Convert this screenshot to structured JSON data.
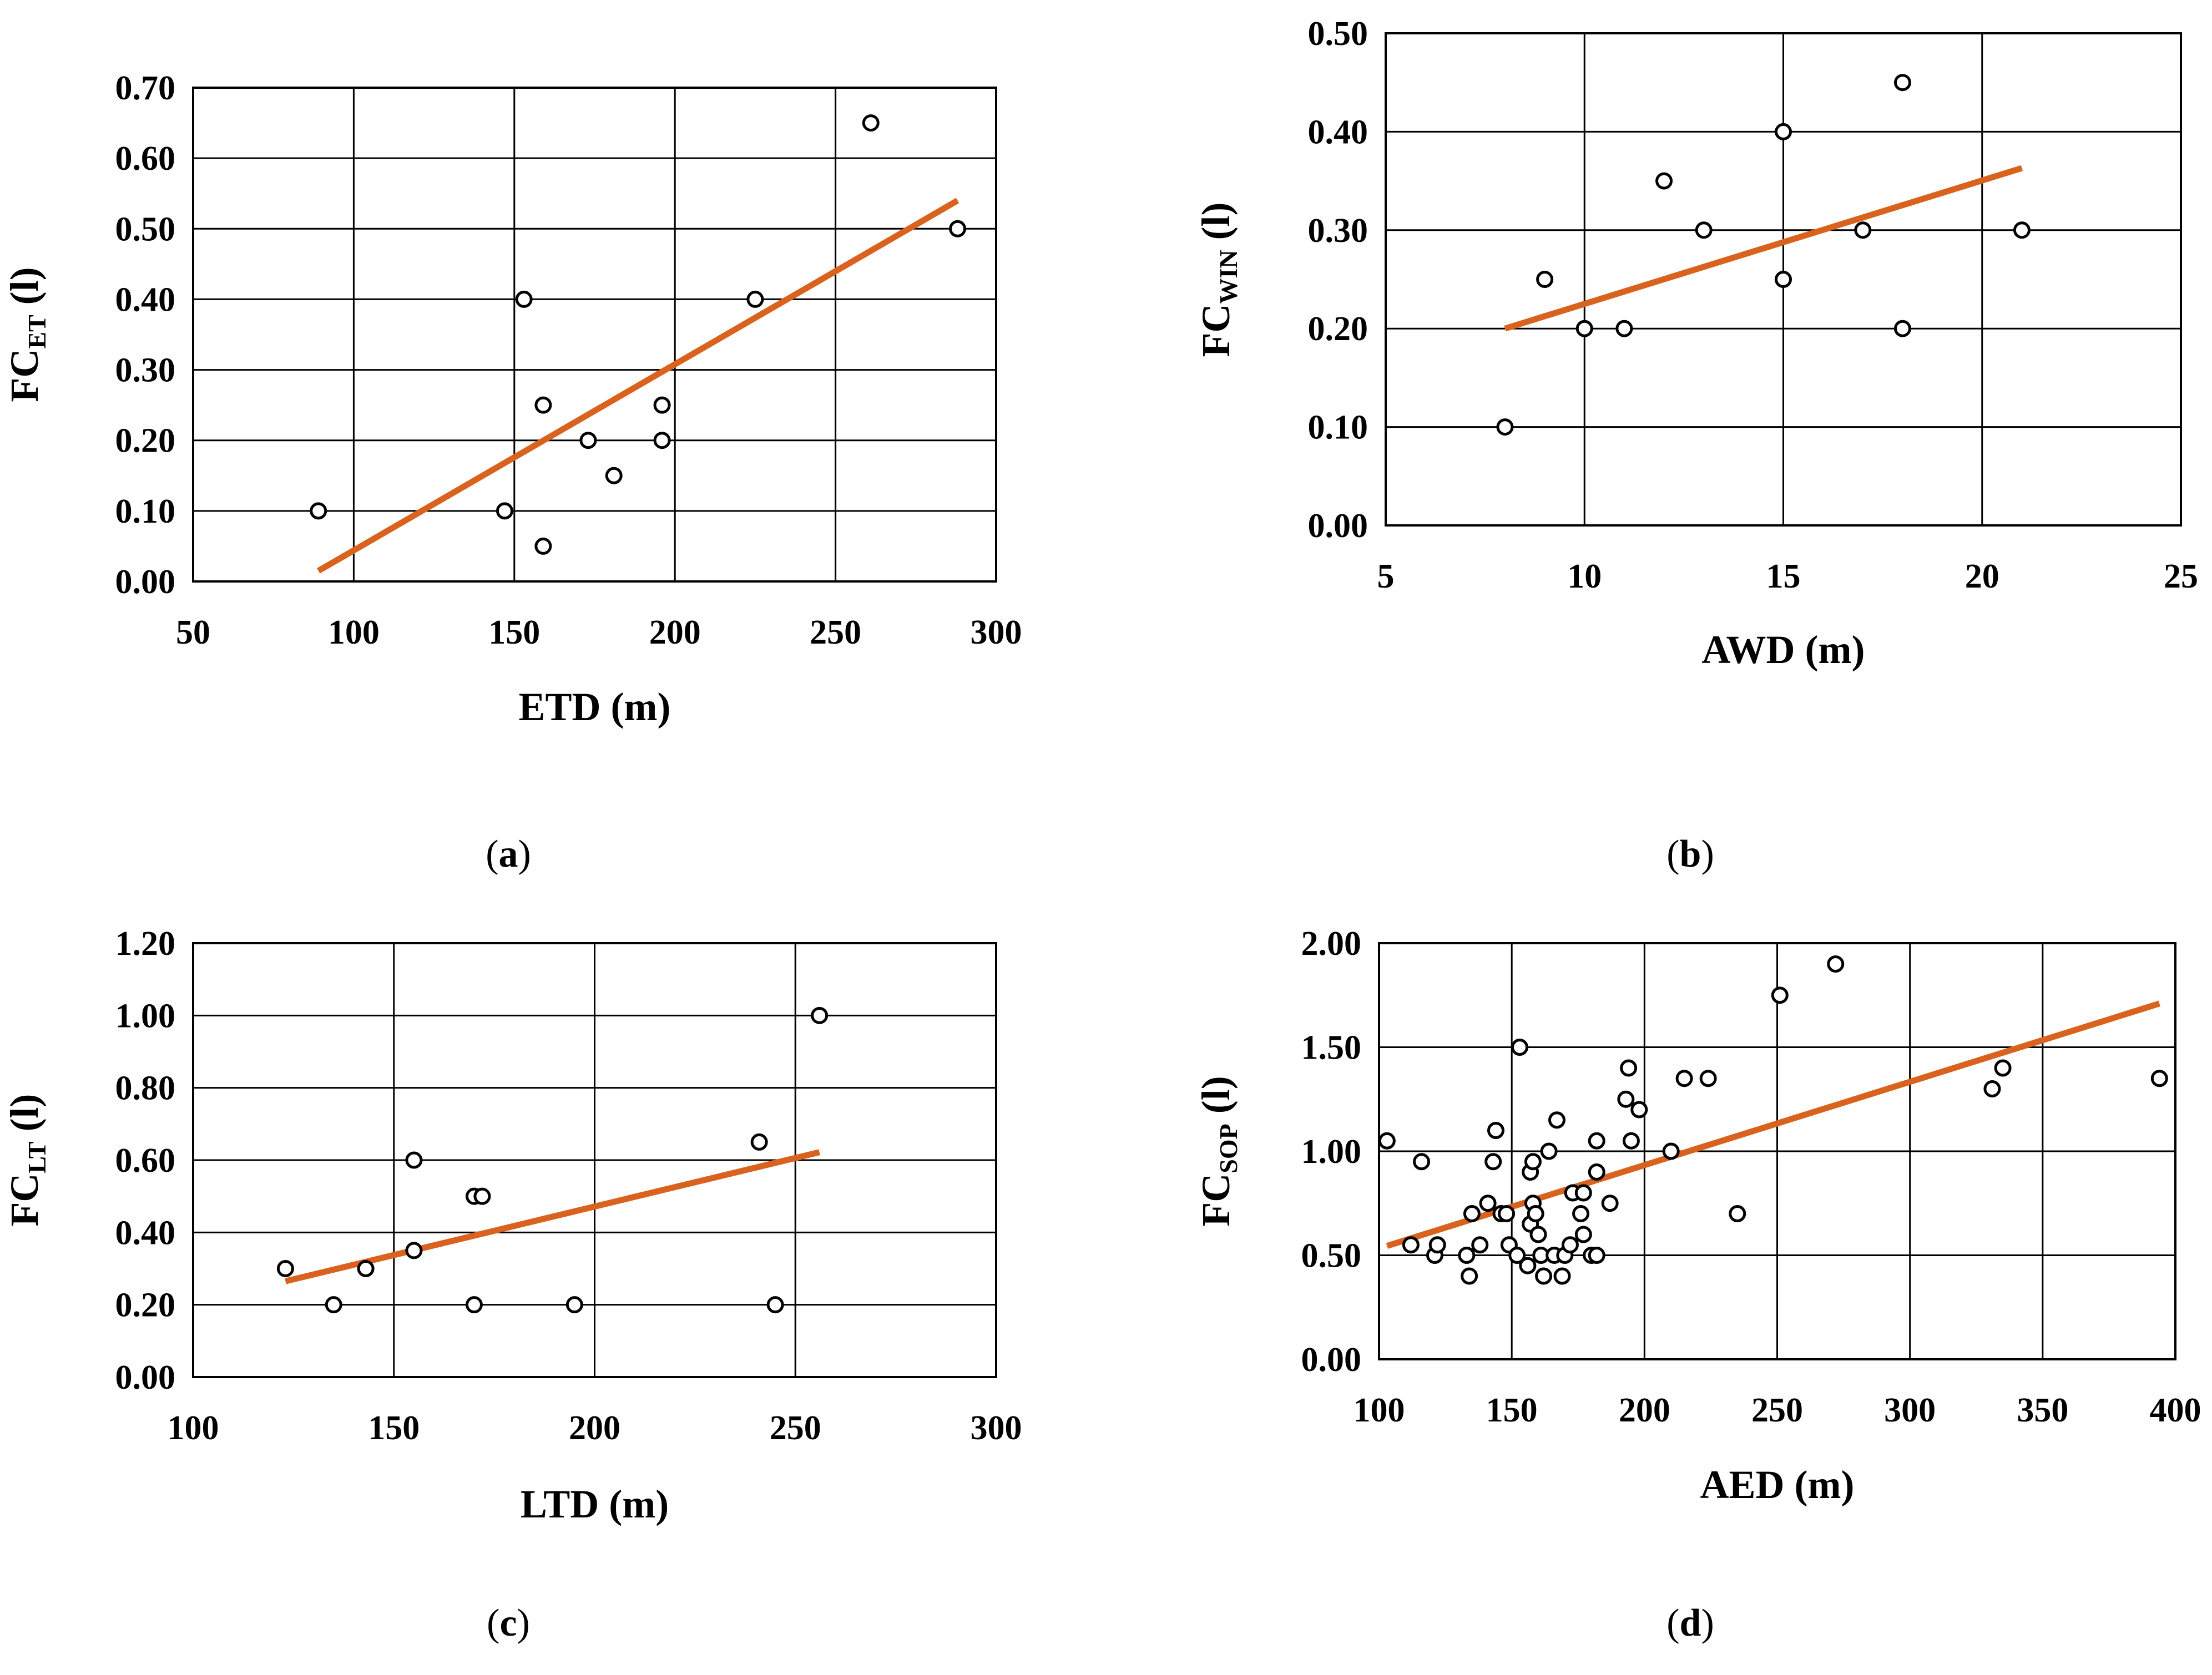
{
  "colors": {
    "trendline": "#d9631e",
    "points_fill": "#ffffff",
    "points_stroke": "#000000",
    "grid": "#000000"
  },
  "chart_data": [
    {
      "id": "a",
      "type": "scatter",
      "panel_label_open": "(",
      "panel_label": "a",
      "panel_label_close": ")",
      "xlabel": "ETD (m)",
      "ylabel_main": "FC",
      "ylabel_sub": "ET",
      "ylabel_suffix": " (l)",
      "xlim": [
        50,
        300
      ],
      "ylim": [
        0,
        0.7
      ],
      "xticks": [
        50,
        100,
        150,
        200,
        250,
        300
      ],
      "xtick_labels": [
        "50",
        "100",
        "150",
        "200",
        "250",
        "300"
      ],
      "yticks": [
        0,
        0.1,
        0.2,
        0.3,
        0.4,
        0.5,
        0.6,
        0.7
      ],
      "ytick_labels": [
        "0.00",
        "0.10",
        "0.20",
        "0.30",
        "0.40",
        "0.50",
        "0.60",
        "0.70"
      ],
      "points": [
        [
          89,
          0.1
        ],
        [
          147,
          0.1
        ],
        [
          153,
          0.4
        ],
        [
          159,
          0.25
        ],
        [
          159,
          0.05
        ],
        [
          173,
          0.2
        ],
        [
          181,
          0.15
        ],
        [
          196,
          0.25
        ],
        [
          196,
          0.2
        ],
        [
          225,
          0.4
        ],
        [
          261,
          0.65
        ],
        [
          288,
          0.5
        ]
      ],
      "trendline": [
        [
          89,
          0.015
        ],
        [
          288,
          0.54
        ]
      ]
    },
    {
      "id": "b",
      "type": "scatter",
      "panel_label_open": "(",
      "panel_label": "b",
      "panel_label_close": ")",
      "xlabel": "AWD (m)",
      "ylabel_main": "FC",
      "ylabel_sub": "WIN",
      "ylabel_suffix": " (l)",
      "xlim": [
        5,
        25
      ],
      "ylim": [
        0,
        0.5
      ],
      "xticks": [
        5,
        10,
        15,
        20,
        25
      ],
      "xtick_labels": [
        "5",
        "10",
        "15",
        "20",
        "25"
      ],
      "yticks": [
        0,
        0.1,
        0.2,
        0.3,
        0.4,
        0.5
      ],
      "ytick_labels": [
        "0.00",
        "0.10",
        "0.20",
        "0.30",
        "0.40",
        "0.50"
      ],
      "points": [
        [
          8,
          0.1
        ],
        [
          9,
          0.25
        ],
        [
          10,
          0.2
        ],
        [
          11,
          0.2
        ],
        [
          12,
          0.35
        ],
        [
          13,
          0.3
        ],
        [
          15,
          0.4
        ],
        [
          15,
          0.25
        ],
        [
          17,
          0.3
        ],
        [
          18,
          0.45
        ],
        [
          18,
          0.2
        ],
        [
          21,
          0.3
        ]
      ],
      "trendline": [
        [
          8,
          0.2
        ],
        [
          21,
          0.363
        ]
      ]
    },
    {
      "id": "c",
      "type": "scatter",
      "panel_label_open": "(",
      "panel_label": "c",
      "panel_label_close": ")",
      "xlabel": "LTD (m)",
      "ylabel_main": "FC",
      "ylabel_sub": "LT",
      "ylabel_suffix": " (l)",
      "xlim": [
        100,
        300
      ],
      "ylim": [
        0,
        1.2
      ],
      "xticks": [
        100,
        150,
        200,
        250,
        300
      ],
      "xtick_labels": [
        "100",
        "150",
        "200",
        "250",
        "300"
      ],
      "yticks": [
        0,
        0.2,
        0.4,
        0.6,
        0.8,
        1.0,
        1.2
      ],
      "ytick_labels": [
        "0.00",
        "0.20",
        "0.40",
        "0.60",
        "0.80",
        "1.00",
        "1.20"
      ],
      "points": [
        [
          123,
          0.3
        ],
        [
          135,
          0.2
        ],
        [
          143,
          0.3
        ],
        [
          155,
          0.6
        ],
        [
          155,
          0.35
        ],
        [
          170,
          0.5
        ],
        [
          172,
          0.5
        ],
        [
          170,
          0.2
        ],
        [
          195,
          0.2
        ],
        [
          241,
          0.65
        ],
        [
          245,
          0.2
        ],
        [
          256,
          1.0
        ]
      ],
      "trendline": [
        [
          123,
          0.265
        ],
        [
          256,
          0.622
        ]
      ]
    },
    {
      "id": "d",
      "type": "scatter",
      "panel_label_open": "(",
      "panel_label": "d",
      "panel_label_close": ")",
      "xlabel": "AED (m)",
      "ylabel_main": "FC",
      "ylabel_sub": "SOP",
      "ylabel_suffix": " (l)",
      "xlim": [
        100,
        400
      ],
      "ylim": [
        0,
        2.0
      ],
      "xticks": [
        100,
        150,
        200,
        250,
        300,
        350,
        400
      ],
      "xtick_labels": [
        "100",
        "150",
        "200",
        "250",
        "300",
        "350",
        "400"
      ],
      "yticks": [
        0,
        0.5,
        1.0,
        1.5,
        2.0
      ],
      "ytick_labels": [
        "0.00",
        "0.50",
        "1.00",
        "1.50",
        "2.00"
      ],
      "points": [
        [
          103,
          1.05
        ],
        [
          112,
          0.55
        ],
        [
          116,
          0.95
        ],
        [
          121,
          0.5
        ],
        [
          122,
          0.55
        ],
        [
          133,
          0.5
        ],
        [
          134,
          0.4
        ],
        [
          135,
          0.7
        ],
        [
          138,
          0.55
        ],
        [
          141,
          0.75
        ],
        [
          143,
          0.95
        ],
        [
          144,
          1.1
        ],
        [
          146,
          0.7
        ],
        [
          148,
          0.7
        ],
        [
          149,
          0.55
        ],
        [
          152,
          0.5
        ],
        [
          153,
          1.5
        ],
        [
          156,
          0.45
        ],
        [
          157,
          0.9
        ],
        [
          157,
          0.65
        ],
        [
          158,
          0.75
        ],
        [
          158,
          0.95
        ],
        [
          159,
          0.7
        ],
        [
          160,
          0.6
        ],
        [
          161,
          0.5
        ],
        [
          162,
          0.4
        ],
        [
          164,
          1.0
        ],
        [
          166,
          0.5
        ],
        [
          167,
          1.15
        ],
        [
          169,
          0.4
        ],
        [
          170,
          0.5
        ],
        [
          172,
          0.55
        ],
        [
          173,
          0.8
        ],
        [
          176,
          0.7
        ],
        [
          177,
          0.6
        ],
        [
          177,
          0.8
        ],
        [
          180,
          0.5
        ],
        [
          182,
          0.5
        ],
        [
          182,
          0.9
        ],
        [
          182,
          1.05
        ],
        [
          187,
          0.75
        ],
        [
          193,
          1.25
        ],
        [
          194,
          1.4
        ],
        [
          195,
          1.05
        ],
        [
          198,
          1.2
        ],
        [
          210,
          1.0
        ],
        [
          215,
          1.35
        ],
        [
          224,
          1.35
        ],
        [
          235,
          0.7
        ],
        [
          251,
          1.75
        ],
        [
          272,
          1.9
        ],
        [
          331,
          1.3
        ],
        [
          335,
          1.4
        ],
        [
          394,
          1.35
        ]
      ],
      "trendline": [
        [
          103,
          0.545
        ],
        [
          394,
          1.71
        ]
      ]
    }
  ]
}
